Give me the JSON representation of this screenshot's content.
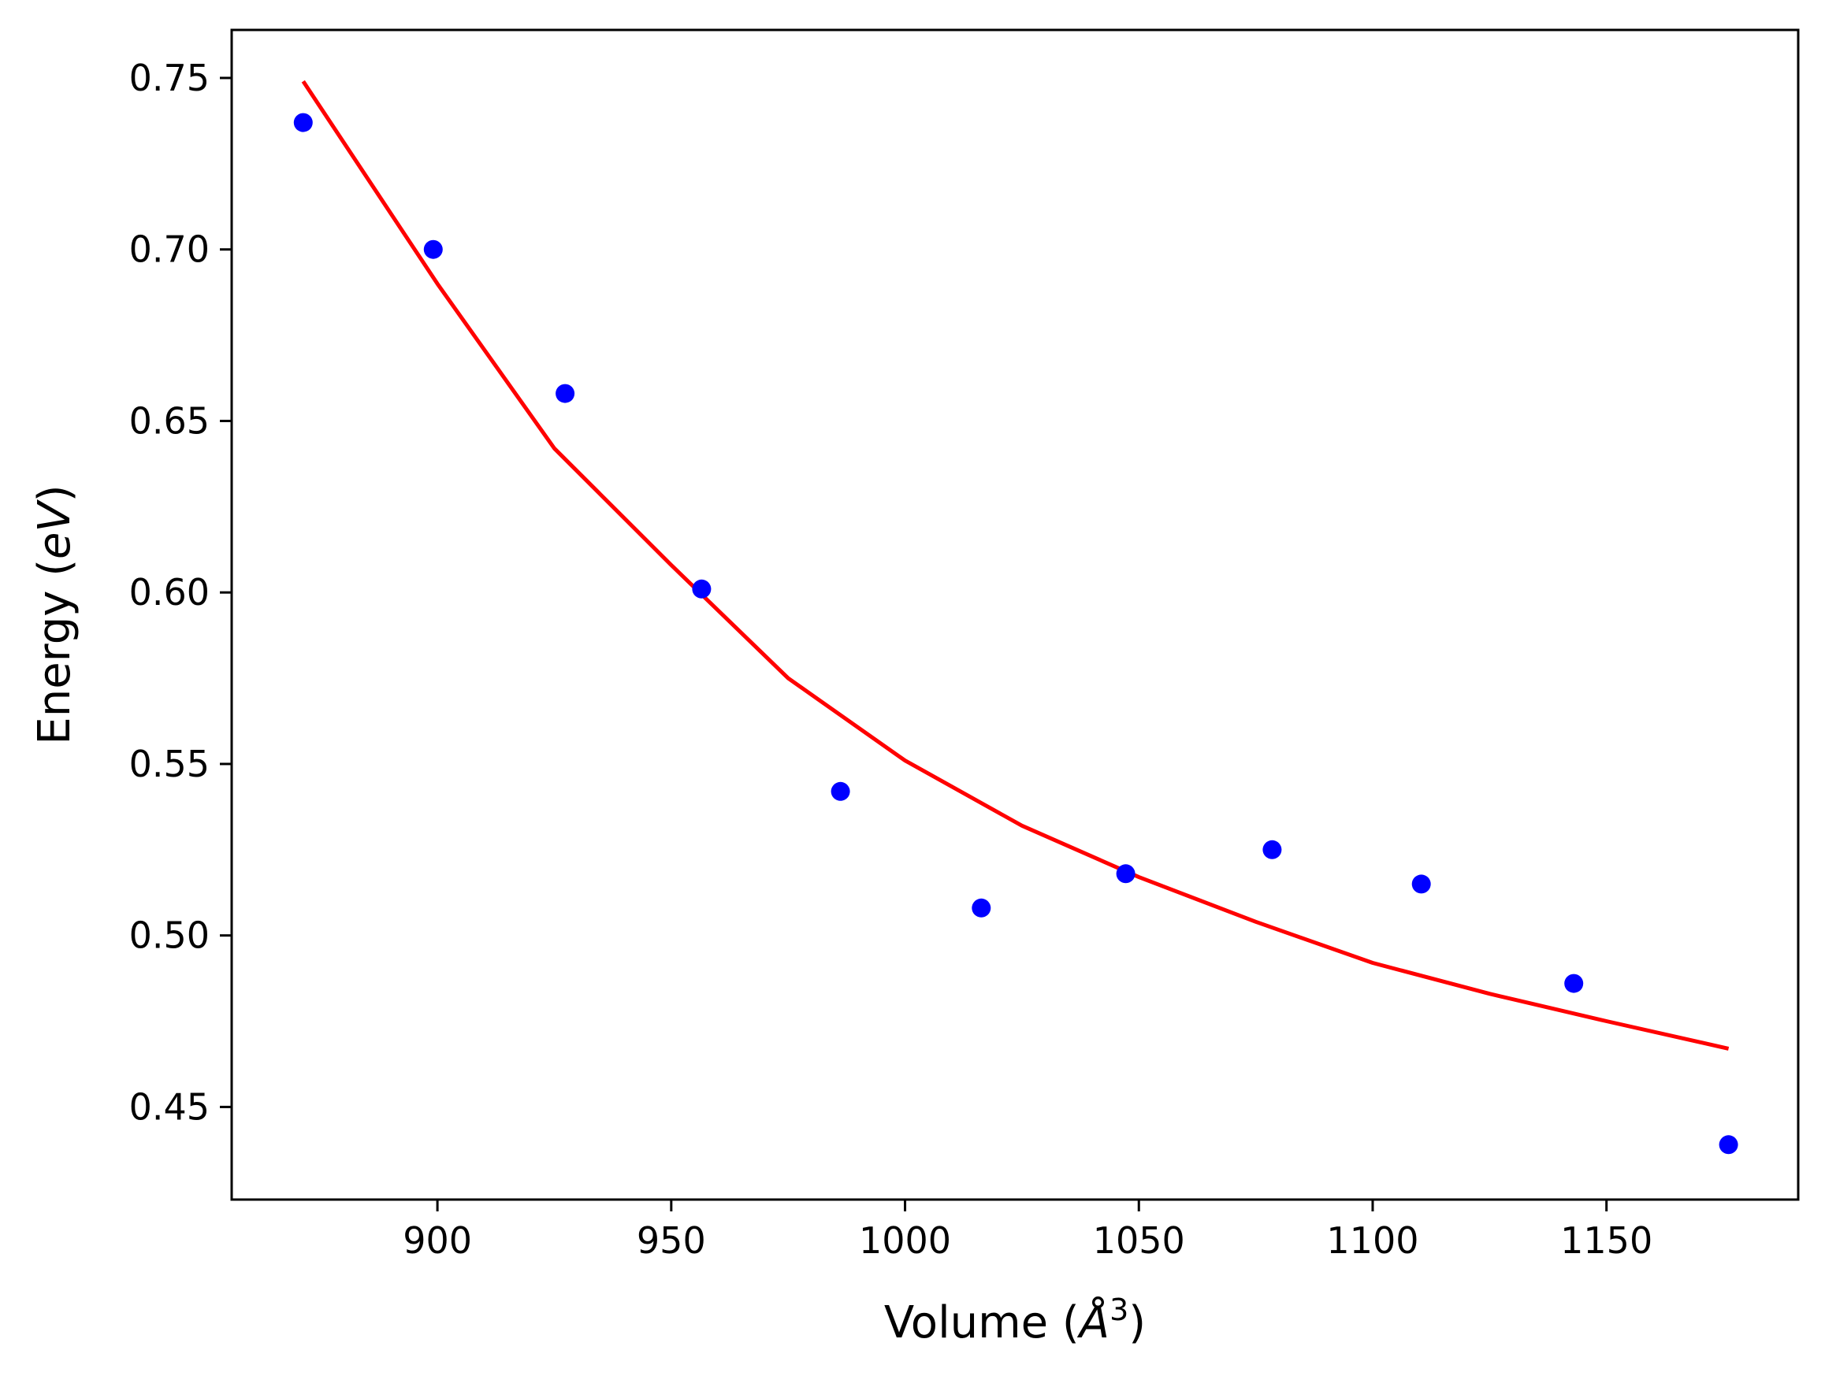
{
  "chart_data": {
    "type": "scatter",
    "title": "",
    "xlabel": {
      "text": "Volume (",
      "unit_letter": "Å",
      "unit_power": "3",
      "close": ")"
    },
    "ylabel": {
      "text": "Energy (",
      "unit": "eV",
      "close": ")"
    },
    "xlim": [
      856,
      1191
    ],
    "ylim": [
      0.423,
      0.764
    ],
    "xticks": [
      900,
      950,
      1000,
      1050,
      1100,
      1150
    ],
    "xtick_labels": [
      "900",
      "950",
      "1000",
      "1050",
      "1100",
      "1150"
    ],
    "yticks": [
      0.45,
      0.5,
      0.55,
      0.6,
      0.65,
      0.7,
      0.75
    ],
    "ytick_labels": [
      "0.45",
      "0.50",
      "0.55",
      "0.60",
      "0.65",
      "0.70",
      "0.75"
    ],
    "grid": false,
    "series": [
      {
        "type": "scatter",
        "color": "#0000ff",
        "points": [
          {
            "x": 871.3,
            "y": 0.737
          },
          {
            "x": 899.1,
            "y": 0.7
          },
          {
            "x": 927.3,
            "y": 0.658
          },
          {
            "x": 956.5,
            "y": 0.601
          },
          {
            "x": 986.2,
            "y": 0.542
          },
          {
            "x": 1016.3,
            "y": 0.508
          },
          {
            "x": 1047.2,
            "y": 0.518
          },
          {
            "x": 1078.5,
            "y": 0.525
          },
          {
            "x": 1110.4,
            "y": 0.515
          },
          {
            "x": 1143.0,
            "y": 0.486
          },
          {
            "x": 1176.1,
            "y": 0.439
          }
        ]
      },
      {
        "type": "line",
        "color": "#ff0000",
        "points": [
          {
            "x": 871.3,
            "y": 0.749
          },
          {
            "x": 900.0,
            "y": 0.69
          },
          {
            "x": 925.0,
            "y": 0.642
          },
          {
            "x": 950.0,
            "y": 0.608
          },
          {
            "x": 975.0,
            "y": 0.575
          },
          {
            "x": 1000.0,
            "y": 0.551
          },
          {
            "x": 1025.0,
            "y": 0.532
          },
          {
            "x": 1050.0,
            "y": 0.517
          },
          {
            "x": 1075.0,
            "y": 0.504
          },
          {
            "x": 1100.0,
            "y": 0.492
          },
          {
            "x": 1125.0,
            "y": 0.483
          },
          {
            "x": 1150.0,
            "y": 0.475
          },
          {
            "x": 1176.1,
            "y": 0.467
          }
        ]
      }
    ]
  }
}
